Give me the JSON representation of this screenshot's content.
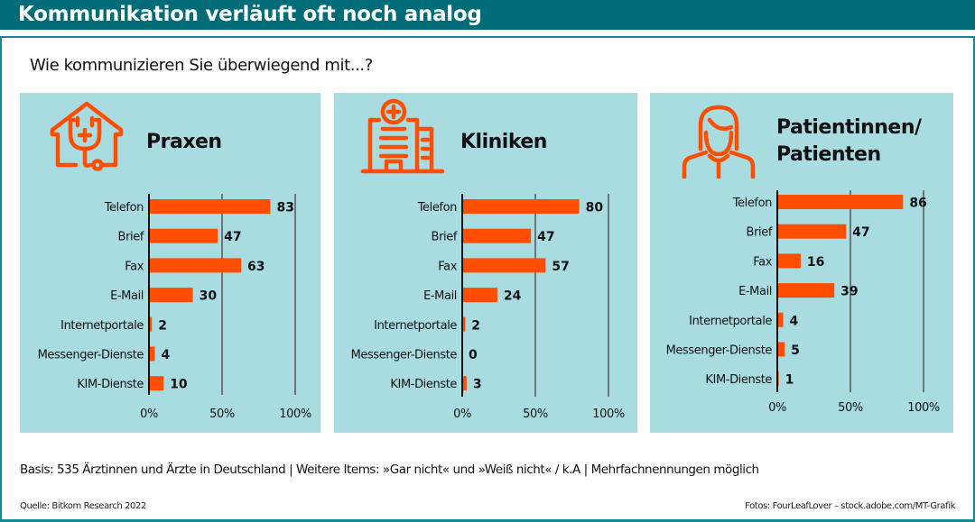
{
  "header": {
    "title": "Kommunikation verläuft oft noch analog"
  },
  "question": "Wie kommunizieren Sie überwiegend mit...?",
  "colors": {
    "header": "#006C78",
    "panel": "#A9DCE1",
    "bar": "#FF4E00",
    "icon": "#FF4E00",
    "gridline": "#555555",
    "axis": "#111111"
  },
  "footer": {
    "basis": "Basis: 535 Ärztinnen und Ärzte in Deutschland | Weitere Items: »Gar nicht« und »Weiß nicht« / k.A | Mehrfachnennungen möglich",
    "source": "Quelle: Bitkom Research 2022",
    "credit": "Fotos: FourLeafLover – stock.adobe.com/MT-Grafik"
  },
  "panels": [
    {
      "title_line1": "Praxen",
      "title_line2": "",
      "icon": "house-stethoscope-icon"
    },
    {
      "title_line1": "Kliniken",
      "title_line2": "",
      "icon": "hospital-building-icon"
    },
    {
      "title_line1": "Patientinnen/",
      "title_line2": "Patienten",
      "icon": "person-icon"
    }
  ],
  "chart_data": [
    {
      "type": "bar",
      "orientation": "horizontal",
      "title": "Praxen",
      "categories": [
        "Telefon",
        "Brief",
        "Fax",
        "E-Mail",
        "Internetportale",
        "Messenger-Dienste",
        "KIM-Dienste"
      ],
      "values": [
        83,
        47,
        63,
        30,
        2,
        4,
        10
      ],
      "xlim": [
        0,
        100
      ],
      "ticks": [
        "0%",
        "50%",
        "100%"
      ],
      "grid": true,
      "unit": "%"
    },
    {
      "type": "bar",
      "orientation": "horizontal",
      "title": "Kliniken",
      "categories": [
        "Telefon",
        "Brief",
        "Fax",
        "E-Mail",
        "Internetportale",
        "Messenger-Dienste",
        "KIM-Dienste"
      ],
      "values": [
        80,
        47,
        57,
        24,
        2,
        0,
        3
      ],
      "xlim": [
        0,
        100
      ],
      "ticks": [
        "0%",
        "50%",
        "100%"
      ],
      "grid": true,
      "unit": "%"
    },
    {
      "type": "bar",
      "orientation": "horizontal",
      "title": "Patientinnen/Patienten",
      "categories": [
        "Telefon",
        "Brief",
        "Fax",
        "E-Mail",
        "Internetportale",
        "Messenger-Dienste",
        "KIM-Dienste"
      ],
      "values": [
        86,
        47,
        16,
        39,
        4,
        5,
        1
      ],
      "xlim": [
        0,
        100
      ],
      "ticks": [
        "0%",
        "50%",
        "100%"
      ],
      "grid": true,
      "unit": "%"
    }
  ]
}
